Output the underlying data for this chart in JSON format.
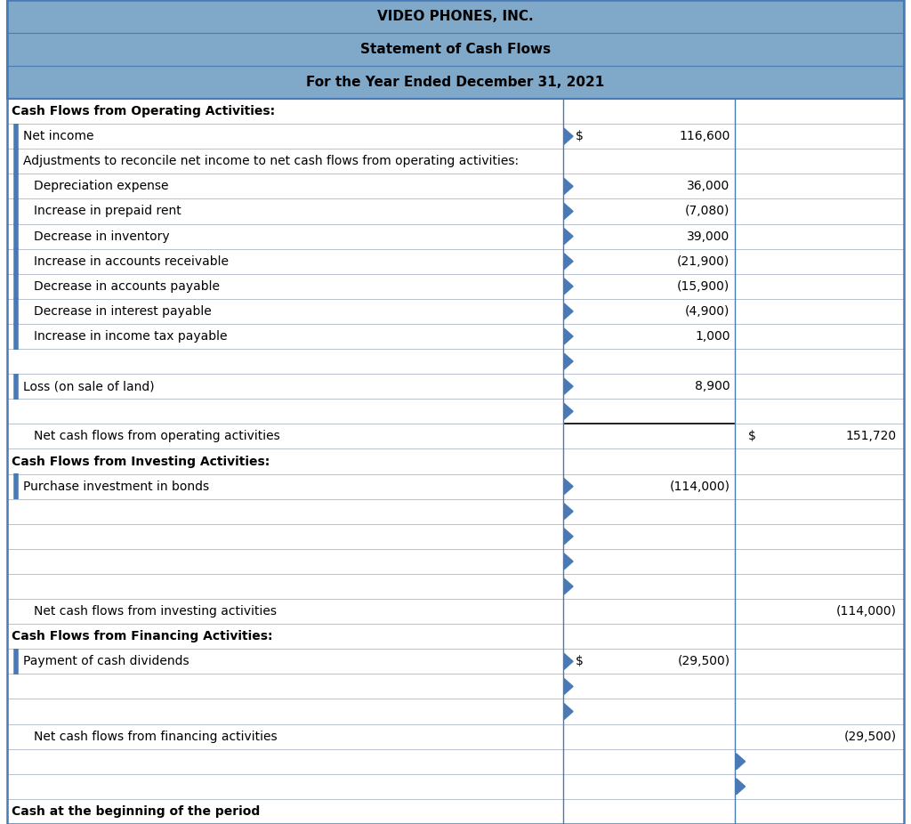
{
  "title_line1": "VIDEO PHONES, INC.",
  "title_line2": "Statement of Cash Flows",
  "title_line3": "For the Year Ended December 31, 2021",
  "header_bg": "#7fa8c9",
  "border_color": "#4a7ab5",
  "grid_color": "#b0b8c8",
  "table_bg": "#ffffff",
  "font_size": 10.0,
  "title_font_size": 11.0,
  "rows": [
    {
      "label": "Cash Flows from Operating Activities:",
      "indent": 0,
      "col1": "",
      "col2": "",
      "type": "section_header",
      "left_bar": false,
      "tri1": false,
      "tri2": false
    },
    {
      "label": "Net income",
      "indent": 1,
      "col1_dollar": "$",
      "col1": "116,600",
      "col2": "",
      "type": "data",
      "left_bar": true,
      "tri1": true,
      "tri2": false
    },
    {
      "label": "Adjustments to reconcile net income to net cash flows from operating activities:",
      "indent": 1,
      "col1": "",
      "col2": "",
      "type": "label_only",
      "left_bar": true,
      "tri1": false,
      "tri2": false
    },
    {
      "label": "Depreciation expense",
      "indent": 2,
      "col1_dollar": "",
      "col1": "36,000",
      "col2": "",
      "type": "data",
      "left_bar": true,
      "tri1": true,
      "tri2": false
    },
    {
      "label": "Increase in prepaid rent",
      "indent": 2,
      "col1": "(7,080)",
      "col2": "",
      "type": "data",
      "left_bar": true,
      "tri1": true,
      "tri2": false
    },
    {
      "label": "Decrease in inventory",
      "indent": 2,
      "col1": "39,000",
      "col2": "",
      "type": "data",
      "left_bar": true,
      "tri1": true,
      "tri2": false
    },
    {
      "label": "Increase in accounts receivable",
      "indent": 2,
      "col1": "(21,900)",
      "col2": "",
      "type": "data",
      "left_bar": true,
      "tri1": true,
      "tri2": false
    },
    {
      "label": "Decrease in accounts payable",
      "indent": 2,
      "col1": "(15,900)",
      "col2": "",
      "type": "data",
      "left_bar": true,
      "tri1": true,
      "tri2": false
    },
    {
      "label": "Decrease in interest payable",
      "indent": 2,
      "col1": "(4,900)",
      "col2": "",
      "type": "data",
      "left_bar": true,
      "tri1": true,
      "tri2": false
    },
    {
      "label": "Increase in income tax payable",
      "indent": 2,
      "col1": "1,000",
      "col2": "",
      "type": "data",
      "left_bar": true,
      "tri1": true,
      "tri2": false
    },
    {
      "label": "",
      "indent": 0,
      "col1": "",
      "col2": "",
      "type": "empty",
      "left_bar": false,
      "tri1": true,
      "tri2": false
    },
    {
      "label": "Loss (on sale of land)",
      "indent": 1,
      "col1": "8,900",
      "col2": "",
      "type": "data",
      "left_bar": true,
      "tri1": true,
      "tri2": false
    },
    {
      "label": "",
      "indent": 0,
      "col1": "",
      "col2": "",
      "type": "empty",
      "left_bar": false,
      "tri1": true,
      "tri2": false
    },
    {
      "label": "Net cash flows from operating activities",
      "indent": 2,
      "col1": "",
      "col2_dollar": "$",
      "col2": "151,720",
      "type": "subtotal",
      "left_bar": false,
      "tri1": false,
      "tri2": false,
      "underline_col1": true
    },
    {
      "label": "Cash Flows from Investing Activities:",
      "indent": 0,
      "col1": "",
      "col2": "",
      "type": "section_header",
      "left_bar": false,
      "tri1": false,
      "tri2": false
    },
    {
      "label": "Purchase investment in bonds",
      "indent": 1,
      "col1": "(114,000)",
      "col2": "",
      "type": "data",
      "left_bar": true,
      "tri1": true,
      "tri2": false
    },
    {
      "label": "",
      "indent": 0,
      "col1": "",
      "col2": "",
      "type": "empty",
      "left_bar": false,
      "tri1": true,
      "tri2": false
    },
    {
      "label": "",
      "indent": 0,
      "col1": "",
      "col2": "",
      "type": "empty",
      "left_bar": false,
      "tri1": true,
      "tri2": false
    },
    {
      "label": "",
      "indent": 0,
      "col1": "",
      "col2": "",
      "type": "empty",
      "left_bar": false,
      "tri1": true,
      "tri2": false
    },
    {
      "label": "",
      "indent": 0,
      "col1": "",
      "col2": "",
      "type": "empty",
      "left_bar": false,
      "tri1": true,
      "tri2": false
    },
    {
      "label": "Net cash flows from investing activities",
      "indent": 2,
      "col1": "",
      "col2": "(114,000)",
      "type": "subtotal",
      "left_bar": false,
      "tri1": false,
      "tri2": false,
      "underline_col1": false
    },
    {
      "label": "Cash Flows from Financing Activities:",
      "indent": 0,
      "col1": "",
      "col2": "",
      "type": "section_header",
      "left_bar": false,
      "tri1": false,
      "tri2": false
    },
    {
      "label": "Payment of cash dividends",
      "indent": 1,
      "col1_dollar": "$",
      "col1": "(29,500)",
      "col2": "",
      "type": "data",
      "left_bar": true,
      "tri1": true,
      "tri2": false
    },
    {
      "label": "",
      "indent": 0,
      "col1": "",
      "col2": "",
      "type": "empty",
      "left_bar": false,
      "tri1": true,
      "tri2": false
    },
    {
      "label": "",
      "indent": 0,
      "col1": "",
      "col2": "",
      "type": "empty",
      "left_bar": false,
      "tri1": true,
      "tri2": false
    },
    {
      "label": "Net cash flows from financing activities",
      "indent": 2,
      "col1": "",
      "col2": "(29,500)",
      "type": "subtotal",
      "left_bar": false,
      "tri1": false,
      "tri2": false,
      "underline_col1": false
    },
    {
      "label": "",
      "indent": 0,
      "col1": "",
      "col2": "",
      "type": "empty",
      "left_bar": false,
      "tri1": false,
      "tri2": true
    },
    {
      "label": "",
      "indent": 0,
      "col1": "",
      "col2": "",
      "type": "empty",
      "left_bar": false,
      "tri1": false,
      "tri2": true
    },
    {
      "label": "Cash at the beginning of the period",
      "indent": 0,
      "col1": "",
      "col2": "",
      "type": "section_header",
      "left_bar": false,
      "tri1": false,
      "tri2": false
    }
  ]
}
